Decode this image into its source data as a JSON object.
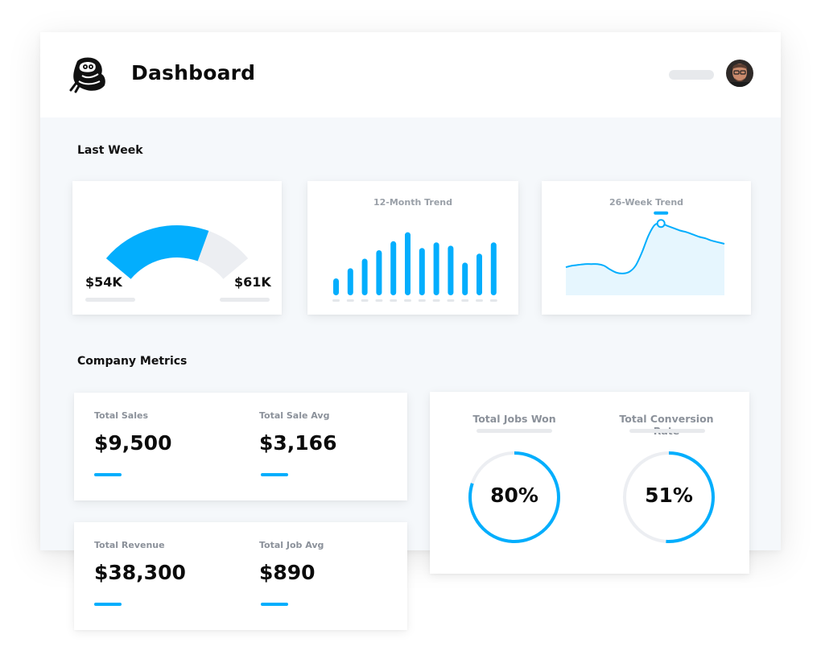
{
  "header": {
    "title": "Dashboard",
    "logo_icon": "mascot-logo-icon",
    "avatar_icon": "user-avatar-icon"
  },
  "colors": {
    "accent": "#03aefd",
    "track": "#eceef2",
    "area_fill": "#e6f6fe",
    "muted_text": "#8b919a"
  },
  "last_week": {
    "title": "Last Week",
    "gauge": {
      "min_label": "$54K",
      "max_label": "$61K",
      "fill_fraction": 0.7
    },
    "monthly_trend": {
      "title": "12-Month Trend",
      "chart_data": {
        "type": "bar",
        "title": "12-Month Trend",
        "categories": [
          "",
          "",
          "",
          "",
          "",
          "",
          "",
          "",
          "",
          "",
          "",
          ""
        ],
        "values": [
          3,
          4.8,
          6.5,
          8,
          9.6,
          11.2,
          8.4,
          9.4,
          8.8,
          5.8,
          7.4,
          9.4
        ],
        "ylim": [
          0,
          12
        ],
        "grid": false,
        "legend": "none"
      }
    },
    "weekly_trend": {
      "title": "26-Week Trend",
      "chart_data": {
        "type": "area",
        "title": "26-Week Trend",
        "x": [
          1,
          2,
          3,
          4,
          5,
          6,
          7,
          8,
          9,
          10,
          11,
          12,
          13,
          14,
          15,
          16,
          17,
          18,
          19,
          20,
          21,
          22,
          23,
          24,
          25,
          26
        ],
        "values": [
          3.6,
          3.8,
          3.9,
          4.0,
          4.0,
          4.0,
          3.8,
          3.3,
          2.9,
          2.8,
          3.0,
          3.8,
          5.5,
          7.6,
          9.0,
          9.2,
          8.9,
          8.6,
          8.3,
          8.1,
          7.8,
          7.5,
          7.3,
          7.0,
          6.8,
          6.6
        ],
        "highlight_index": 15,
        "ylim": [
          0,
          10
        ],
        "grid": false,
        "legend": "none"
      }
    }
  },
  "company_metrics": {
    "title": "Company Metrics",
    "cards": [
      {
        "items": [
          {
            "label": "Total Sales",
            "value": "$9,500"
          },
          {
            "label": "Total Sale Avg",
            "value": "$3,166"
          }
        ]
      },
      {
        "items": [
          {
            "label": "Total Revenue",
            "value": "$38,300"
          },
          {
            "label": "Total Job Avg",
            "value": "$890"
          }
        ]
      }
    ],
    "rings": [
      {
        "label": "Total Jobs Won",
        "value_text": "80%",
        "percent": 80
      },
      {
        "label": "Total Conversion Rate",
        "value_text": "51%",
        "percent": 51
      }
    ]
  }
}
